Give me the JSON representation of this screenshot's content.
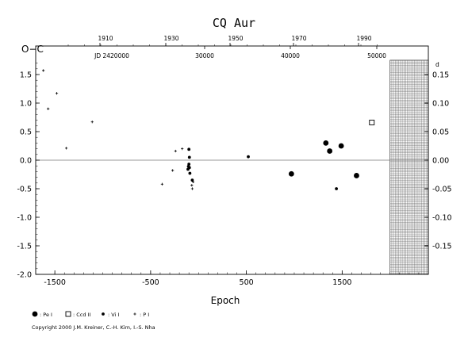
{
  "chart_data": {
    "type": "scatter",
    "title": "CQ Aur",
    "xlabel": "Epoch",
    "ylabel": "O−C",
    "xlim": [
      -1700,
      2400
    ],
    "ylim": [
      -2.0,
      2.0
    ],
    "x_ticks": [
      -1500,
      -500,
      500,
      1500
    ],
    "y_ticks": [
      -2.0,
      -1.5,
      -1.0,
      -0.5,
      0.0,
      0.5,
      1.0,
      1.5
    ],
    "y_tick_labels": [
      "-2.0",
      "-1.5",
      "-1.0",
      "-0.5",
      "0.0",
      "0.5",
      "1.0",
      "1.5"
    ],
    "top_year_ticks": [
      "1910",
      "1930",
      "1950",
      "1970",
      "1990"
    ],
    "top_jd_prefix": "JD 2420000",
    "top_jd_ticks": [
      "30000",
      "40000",
      "50000"
    ],
    "right_ticks": [
      "0.15",
      "0.10",
      "0.05",
      "0.00",
      "-0.05",
      "-0.10",
      "-0.15"
    ],
    "right_unit": "d",
    "zero_line": true,
    "future_region": [
      2000,
      2400
    ],
    "series": [
      {
        "name": ": Pe I",
        "marker": "filled-circle-large",
        "points": [
          [
            970,
            -0.24
          ],
          [
            1330,
            0.3
          ],
          [
            1370,
            0.16
          ],
          [
            1490,
            0.25
          ],
          [
            1650,
            -0.27
          ]
        ]
      },
      {
        "name": ": Ccd II",
        "marker": "open-square",
        "points": [
          [
            1810,
            0.66
          ]
        ]
      },
      {
        "name": ": Vi I",
        "marker": "filled-circle-small",
        "points": [
          [
            -100,
            0.19
          ],
          [
            -95,
            0.05
          ],
          [
            -100,
            -0.07
          ],
          [
            -105,
            -0.11
          ],
          [
            -95,
            -0.13
          ],
          [
            -110,
            -0.16
          ],
          [
            -90,
            -0.23
          ],
          [
            -65,
            -0.35
          ],
          [
            1440,
            -0.5
          ],
          [
            520,
            0.06
          ]
        ]
      },
      {
        "name": ": P I",
        "marker": "plus",
        "points": [
          [
            -1620,
            1.57
          ],
          [
            -1480,
            1.17
          ],
          [
            -1570,
            0.9
          ],
          [
            -1110,
            0.67
          ],
          [
            -1380,
            0.21
          ],
          [
            -380,
            -0.42
          ],
          [
            -270,
            -0.18
          ],
          [
            -240,
            0.16
          ],
          [
            -170,
            0.2
          ],
          [
            -70,
            -0.44
          ],
          [
            -55,
            -0.38
          ],
          [
            -65,
            -0.5
          ]
        ]
      }
    ]
  },
  "copyright": "Copyright 2000 J.M. Kreiner, C.-H. Kim, I.-S. Nha"
}
